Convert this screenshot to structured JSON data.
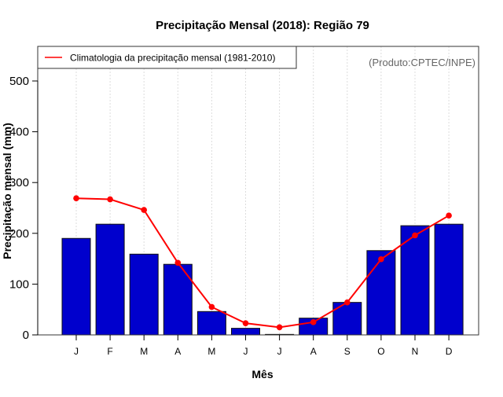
{
  "chart_data": {
    "type": "bar",
    "title": "Precipitação Mensal (2018): Região 79",
    "xlabel": "Mês",
    "ylabel": "Precipitação mensal (mm)",
    "ylim": [
      0,
      570
    ],
    "yticks": [
      0,
      100,
      200,
      300,
      400,
      500
    ],
    "categories": [
      "J",
      "F",
      "M",
      "A",
      "M",
      "J",
      "J",
      "A",
      "S",
      "O",
      "N",
      "D"
    ],
    "grid": "vertical dotted",
    "series": [
      {
        "name": "Precipitação mensal 2018",
        "type": "bar",
        "color": "#0000CD",
        "values": [
          190,
          218,
          159,
          139,
          46,
          13,
          1,
          33,
          64,
          166,
          215,
          218
        ]
      },
      {
        "name": "Climatologia da precipitação mensal (1981-2010)",
        "type": "line",
        "color": "#FF0000",
        "values": [
          269,
          267,
          246,
          142,
          55,
          23,
          15,
          25,
          64,
          149,
          196,
          235
        ]
      }
    ],
    "legend": {
      "position": "top-left",
      "entries": [
        "Climatologia da precipitação mensal (1981-2010)"
      ]
    },
    "annotation": "(Produto:CPTEC/INPE)"
  }
}
